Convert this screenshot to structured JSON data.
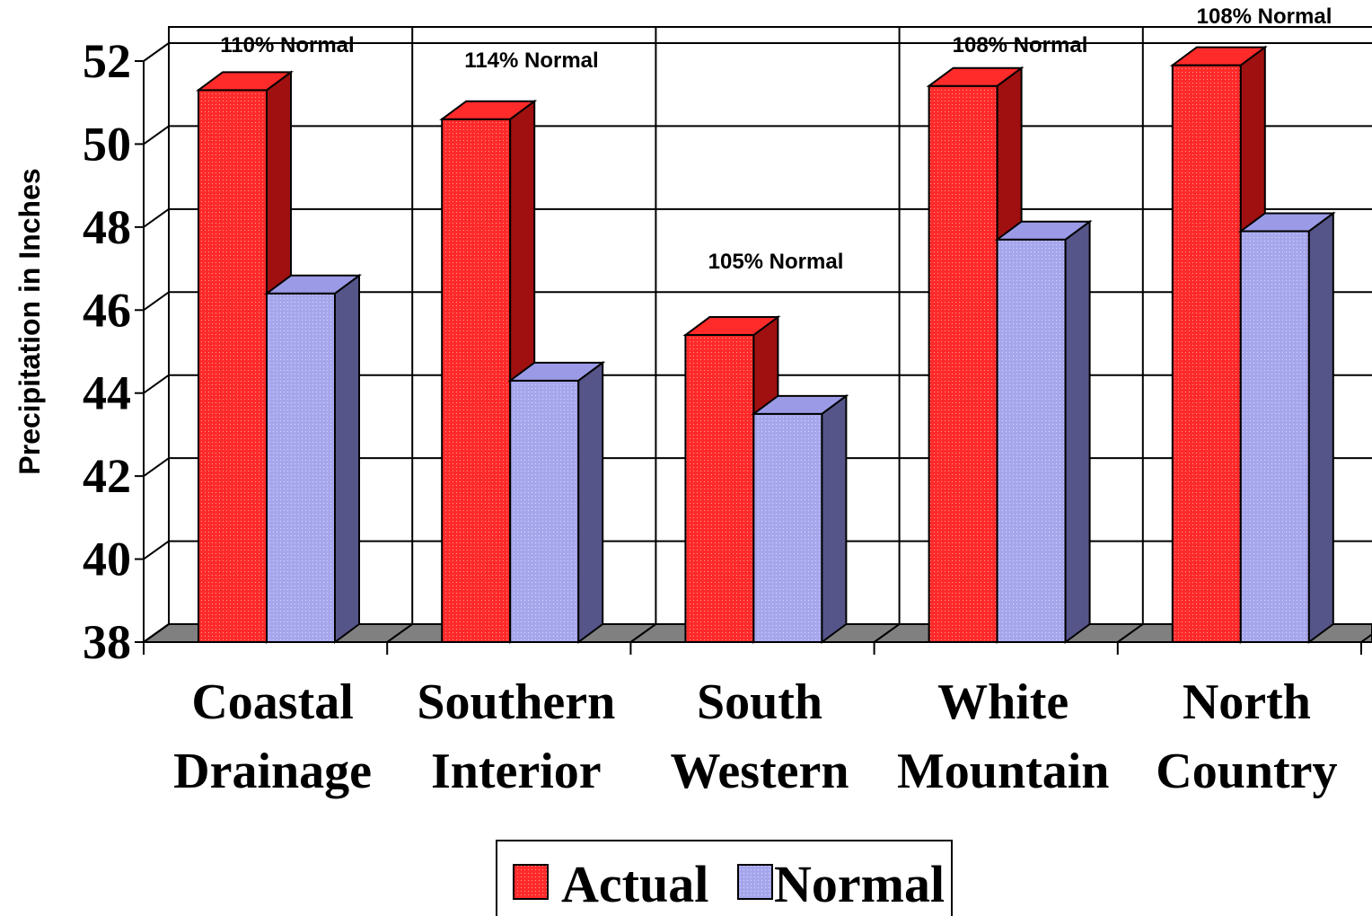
{
  "chart_data": {
    "type": "bar",
    "title": "",
    "ylabel": "Precipitation in Inches",
    "xlabel": "",
    "ylim": [
      38,
      52
    ],
    "yticks": [
      "52",
      "50",
      "48",
      "46",
      "44",
      "42",
      "40",
      "38"
    ],
    "categories": [
      [
        "Coastal",
        "Drainage"
      ],
      [
        "Southern",
        "Interior"
      ],
      [
        "South",
        "Western"
      ],
      [
        "White",
        "Mountain"
      ],
      [
        "North",
        "Country"
      ]
    ],
    "series": [
      {
        "name": "Actual",
        "color": "#ff2020",
        "values": [
          51.3,
          50.6,
          45.4,
          51.4,
          51.9
        ]
      },
      {
        "name": "Normal",
        "color": "#a8a8ee",
        "values": [
          46.4,
          44.3,
          43.5,
          47.7,
          47.9
        ]
      }
    ],
    "annotations": [
      "110% Normal",
      "114% Normal",
      "105% Normal",
      "108% Normal",
      "108% Normal"
    ],
    "grid": true,
    "legend": "bottom-center",
    "colors": {
      "floor": "#808080",
      "actual_side": "#a01010",
      "normal_side": "#55558a"
    }
  }
}
